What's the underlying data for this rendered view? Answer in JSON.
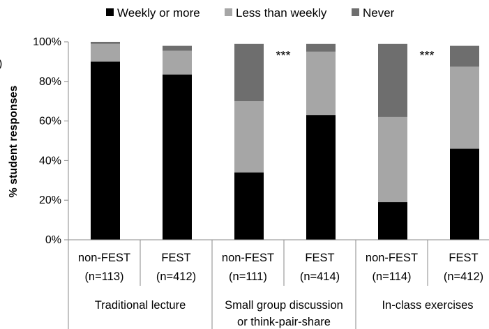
{
  "chart_data": {
    "type": "bar",
    "stacked": true,
    "ylabel": "% student responses",
    "yticks": [
      "0%",
      "20%",
      "40%",
      "60%",
      "80%",
      "100%"
    ],
    "ylim": [
      0,
      100
    ],
    "grid": false,
    "legend_position": "top",
    "categories": [
      {
        "line1": "non-FEST",
        "line2": "(n=113)"
      },
      {
        "line1": "FEST",
        "line2": "(n=412)"
      },
      {
        "line1": "non-FEST",
        "line2": "(n=111)"
      },
      {
        "line1": "FEST",
        "line2": "(n=414)"
      },
      {
        "line1": "non-FEST",
        "line2": "(n=114)"
      },
      {
        "line1": "FEST",
        "line2": "(n=412)"
      }
    ],
    "groups": [
      {
        "lines": [
          "Traditional lecture"
        ],
        "span": [
          0,
          1
        ]
      },
      {
        "lines": [
          "Small group discussion",
          "or think-pair-share"
        ],
        "span": [
          2,
          3
        ]
      },
      {
        "lines": [
          "In-class exercises"
        ],
        "span": [
          4,
          5
        ]
      }
    ],
    "series": [
      {
        "name": "Weekly or more",
        "color": "#000000",
        "values": [
          90,
          83.5,
          34,
          63,
          19,
          46
        ]
      },
      {
        "name": "Less than weekly",
        "color": "#a6a6a6",
        "values": [
          9,
          12,
          36,
          32,
          43,
          41.5
        ]
      },
      {
        "name": "Never",
        "color": "#6e6e6e",
        "values": [
          1,
          2.5,
          29,
          4,
          37,
          10.5
        ]
      }
    ],
    "annotations": [
      {
        "text": "***",
        "category_index": 2
      },
      {
        "text": "***",
        "category_index": 4
      }
    ]
  }
}
